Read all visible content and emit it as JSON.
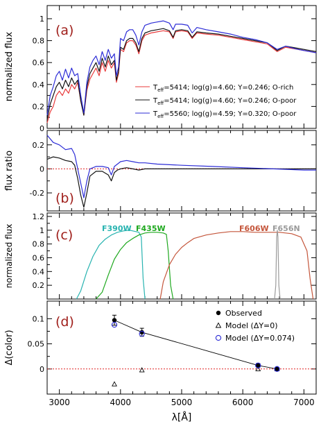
{
  "x_axis": {
    "label": "λ[Å]",
    "range": [
      2800,
      7200
    ],
    "ticks": [
      3000,
      4000,
      5000,
      6000,
      7000
    ],
    "tick_labels": [
      "3000",
      "4000",
      "5000",
      "6000",
      "7000"
    ]
  },
  "colors": {
    "o_rich": "#e8393a",
    "o_poor": "#111111",
    "he_rich": "#2b2bd6",
    "f390w": "#27b3b0",
    "f435w": "#1ea81e",
    "f606w": "#c4553a",
    "f656n": "#9a9a9a",
    "zero_line": "#e02020",
    "panel_letter": "#a0201c"
  },
  "chart_data": [
    {
      "type": "line",
      "panel_label": "(a)",
      "ylabel": "normalized flux",
      "ylim": [
        0,
        1.12
      ],
      "yticks": [
        0,
        0.2,
        0.4,
        0.6,
        0.8,
        1
      ],
      "ytick_labels": [
        "0",
        "0.2",
        "0.4",
        "0.6",
        "0.8",
        "1"
      ],
      "legend_position": "bottom-right",
      "series": [
        {
          "name": "T_eff=5414; log(g)=4.60; Y=0.246; O-rich",
          "legend": {
            "t": "T",
            "sub": "eff",
            "rest": "=5414; log(g)=4.60; Y=0.246; O-rich"
          },
          "color_key": "o_rich",
          "x": [
            2800,
            2850,
            2900,
            2950,
            3000,
            3050,
            3100,
            3150,
            3200,
            3250,
            3300,
            3350,
            3400,
            3450,
            3500,
            3550,
            3600,
            3650,
            3700,
            3750,
            3800,
            3850,
            3900,
            3933,
            3968,
            4000,
            4050,
            4100,
            4150,
            4200,
            4250,
            4300,
            4350,
            4400,
            4450,
            4500,
            4600,
            4700,
            4800,
            4861,
            4900,
            5000,
            5100,
            5172,
            5250,
            5400,
            5600,
            5800,
            6000,
            6200,
            6400,
            6563,
            6700,
            6900,
            7100,
            7200
          ],
          "y": [
            0.05,
            0.15,
            0.2,
            0.3,
            0.34,
            0.3,
            0.36,
            0.32,
            0.4,
            0.36,
            0.42,
            0.25,
            0.12,
            0.35,
            0.45,
            0.5,
            0.55,
            0.48,
            0.6,
            0.52,
            0.62,
            0.55,
            0.6,
            0.42,
            0.5,
            0.72,
            0.7,
            0.78,
            0.8,
            0.8,
            0.76,
            0.68,
            0.8,
            0.85,
            0.86,
            0.87,
            0.88,
            0.89,
            0.88,
            0.82,
            0.88,
            0.89,
            0.88,
            0.82,
            0.87,
            0.86,
            0.85,
            0.83,
            0.81,
            0.79,
            0.77,
            0.7,
            0.74,
            0.72,
            0.7,
            0.69
          ]
        },
        {
          "name": "T_eff=5414; log(g)=4.60; Y=0.246; O-poor",
          "legend": {
            "t": "T",
            "sub": "eff",
            "rest": "=5414; log(g)=4.60; Y=0.246; O-poor"
          },
          "color_key": "o_poor",
          "x": [
            2800,
            2850,
            2900,
            2950,
            3000,
            3050,
            3100,
            3150,
            3200,
            3250,
            3300,
            3350,
            3400,
            3450,
            3500,
            3550,
            3600,
            3650,
            3700,
            3750,
            3800,
            3850,
            3900,
            3933,
            3968,
            4000,
            4050,
            4100,
            4150,
            4200,
            4250,
            4300,
            4350,
            4400,
            4450,
            4500,
            4600,
            4700,
            4800,
            4861,
            4900,
            5000,
            5100,
            5172,
            5250,
            5400,
            5600,
            5800,
            6000,
            6200,
            6400,
            6563,
            6700,
            6900,
            7100,
            7200
          ],
          "y": [
            0.08,
            0.22,
            0.3,
            0.38,
            0.42,
            0.36,
            0.44,
            0.38,
            0.46,
            0.4,
            0.44,
            0.25,
            0.12,
            0.38,
            0.5,
            0.55,
            0.6,
            0.52,
            0.64,
            0.56,
            0.66,
            0.58,
            0.62,
            0.44,
            0.52,
            0.74,
            0.72,
            0.8,
            0.82,
            0.82,
            0.78,
            0.7,
            0.82,
            0.87,
            0.88,
            0.89,
            0.9,
            0.91,
            0.89,
            0.83,
            0.89,
            0.9,
            0.89,
            0.83,
            0.88,
            0.87,
            0.86,
            0.84,
            0.82,
            0.8,
            0.78,
            0.71,
            0.75,
            0.73,
            0.71,
            0.7
          ]
        },
        {
          "name": "T_eff=5560; log(g)=4.59; Y=0.320; O-poor",
          "legend": {
            "t": "T",
            "sub": "eff",
            "rest": "=5560; log(g)=4.59; Y=0.320; O-poor"
          },
          "color_key": "he_rich",
          "x": [
            2800,
            2850,
            2900,
            2950,
            3000,
            3050,
            3100,
            3150,
            3200,
            3250,
            3300,
            3350,
            3400,
            3450,
            3500,
            3550,
            3600,
            3650,
            3700,
            3750,
            3800,
            3850,
            3900,
            3933,
            3968,
            4000,
            4050,
            4100,
            4150,
            4200,
            4250,
            4300,
            4350,
            4400,
            4450,
            4500,
            4600,
            4700,
            4800,
            4861,
            4900,
            5000,
            5100,
            5172,
            5250,
            5400,
            5600,
            5800,
            6000,
            6200,
            6400,
            6563,
            6700,
            6900,
            7100,
            7200
          ],
          "y": [
            0.12,
            0.3,
            0.38,
            0.48,
            0.52,
            0.44,
            0.54,
            0.46,
            0.55,
            0.48,
            0.5,
            0.3,
            0.14,
            0.42,
            0.56,
            0.62,
            0.66,
            0.58,
            0.7,
            0.62,
            0.72,
            0.64,
            0.68,
            0.48,
            0.56,
            0.82,
            0.8,
            0.88,
            0.9,
            0.9,
            0.85,
            0.76,
            0.88,
            0.94,
            0.95,
            0.96,
            0.97,
            0.98,
            0.96,
            0.9,
            0.95,
            0.95,
            0.94,
            0.87,
            0.92,
            0.9,
            0.88,
            0.86,
            0.83,
            0.81,
            0.78,
            0.72,
            0.75,
            0.72,
            0.7,
            0.69
          ]
        }
      ]
    },
    {
      "type": "line",
      "panel_label": "(b)",
      "ylabel": "flux ratio",
      "ylim": [
        -0.35,
        0.32
      ],
      "yticks": [
        -0.2,
        0,
        0.2
      ],
      "ytick_labels": [
        "-0.2",
        "0",
        "0.2"
      ],
      "reference_line": 0,
      "series": [
        {
          "color_key": "o_poor",
          "x": [
            2800,
            2900,
            3000,
            3100,
            3200,
            3250,
            3300,
            3350,
            3400,
            3450,
            3500,
            3600,
            3700,
            3800,
            3850,
            3900,
            3950,
            4000,
            4100,
            4200,
            4300,
            4400,
            4600,
            5000,
            5500,
            6000,
            6500,
            7000,
            7200
          ],
          "y": [
            0.08,
            0.1,
            0.09,
            0.07,
            0.06,
            0.03,
            -0.08,
            -0.22,
            -0.32,
            -0.2,
            -0.06,
            -0.02,
            -0.02,
            -0.05,
            -0.1,
            -0.03,
            -0.01,
            0.0,
            0.01,
            0.0,
            -0.01,
            0.0,
            0.0,
            0.0,
            0.0,
            0.0,
            0.0,
            0.0,
            0.0
          ]
        },
        {
          "color_key": "he_rich",
          "x": [
            2800,
            2900,
            3000,
            3100,
            3200,
            3250,
            3300,
            3350,
            3400,
            3450,
            3500,
            3600,
            3700,
            3800,
            3850,
            3900,
            3950,
            4000,
            4100,
            4200,
            4300,
            4400,
            4600,
            5000,
            5500,
            6000,
            6500,
            7000,
            7200
          ],
          "y": [
            0.28,
            0.22,
            0.2,
            0.16,
            0.17,
            0.12,
            0.0,
            -0.12,
            -0.24,
            -0.1,
            0.0,
            0.02,
            0.02,
            0.01,
            -0.05,
            0.02,
            0.04,
            0.06,
            0.07,
            0.06,
            0.05,
            0.05,
            0.04,
            0.03,
            0.02,
            0.01,
            0.0,
            -0.01,
            -0.01
          ]
        }
      ]
    },
    {
      "type": "line",
      "panel_label": "(c)",
      "ylabel": "normalized flux",
      "ylim": [
        0,
        1.25
      ],
      "yticks": [
        0.2,
        0.4,
        0.6,
        0.8,
        1,
        1.2
      ],
      "ytick_labels": [
        "0.2",
        "0.4",
        "0.6",
        "0.8",
        "1",
        "1.2"
      ],
      "series": [
        {
          "name": "F390W",
          "color_key": "f390w",
          "x": [
            3280,
            3350,
            3450,
            3550,
            3650,
            3750,
            3850,
            3950,
            4050,
            4150,
            4250,
            4300,
            4340,
            4370,
            4400
          ],
          "y": [
            0.0,
            0.12,
            0.4,
            0.62,
            0.78,
            0.87,
            0.93,
            0.97,
            0.99,
            1.0,
            0.98,
            0.97,
            0.9,
            0.3,
            0.0
          ]
        },
        {
          "name": "F435W",
          "color_key": "f435w",
          "x": [
            3600,
            3700,
            3800,
            3900,
            4000,
            4100,
            4200,
            4300,
            4400,
            4500,
            4600,
            4700,
            4750,
            4780,
            4820,
            4860
          ],
          "y": [
            0.0,
            0.1,
            0.35,
            0.58,
            0.72,
            0.82,
            0.88,
            0.93,
            0.96,
            0.97,
            0.97,
            0.96,
            0.94,
            0.7,
            0.2,
            0.0
          ]
        },
        {
          "name": "F606W",
          "color_key": "f606w",
          "x": [
            4650,
            4700,
            4800,
            4900,
            5000,
            5100,
            5200,
            5400,
            5600,
            5800,
            6000,
            6200,
            6400,
            6600,
            6800,
            6950,
            7050,
            7100,
            7150
          ],
          "y": [
            0.0,
            0.25,
            0.5,
            0.65,
            0.75,
            0.82,
            0.88,
            0.93,
            0.96,
            0.98,
            0.98,
            0.97,
            0.97,
            0.97,
            0.95,
            0.9,
            0.7,
            0.3,
            0.0
          ]
        },
        {
          "name": "F656N",
          "color_key": "f656n",
          "x": [
            6520,
            6540,
            6555,
            6565,
            6575,
            6590,
            6610
          ],
          "y": [
            0.0,
            0.2,
            0.9,
            1.0,
            0.9,
            0.2,
            0.0
          ]
        }
      ]
    },
    {
      "type": "scatter",
      "panel_label": "(d)",
      "ylabel": "Δ(color)",
      "ylim": [
        -0.05,
        0.135
      ],
      "yticks": [
        0,
        0.05,
        0.1
      ],
      "ytick_labels": [
        "0",
        "0.05",
        "0.1"
      ],
      "reference_line": 0,
      "legend_position": "top-right",
      "legend_entries": [
        "Observed",
        "Model (ΔY=0)",
        "Model (ΔY=0.074)"
      ],
      "series": [
        {
          "name": "Observed",
          "x": [
            3900,
            4350,
            6250,
            6560
          ],
          "y": [
            0.097,
            0.073,
            0.007,
            0.0
          ],
          "yerr": [
            0.01,
            0.008,
            0.004,
            0.002
          ]
        },
        {
          "name": "Model (ΔY=0)",
          "x": [
            3900,
            4350,
            6250,
            6560
          ],
          "y": [
            -0.03,
            -0.002,
            0.0,
            0.0
          ]
        },
        {
          "name": "Model (ΔY=0.074)",
          "x": [
            3900,
            4350,
            6250,
            6560
          ],
          "y": [
            0.088,
            0.07,
            0.007,
            0.0
          ]
        }
      ]
    }
  ]
}
